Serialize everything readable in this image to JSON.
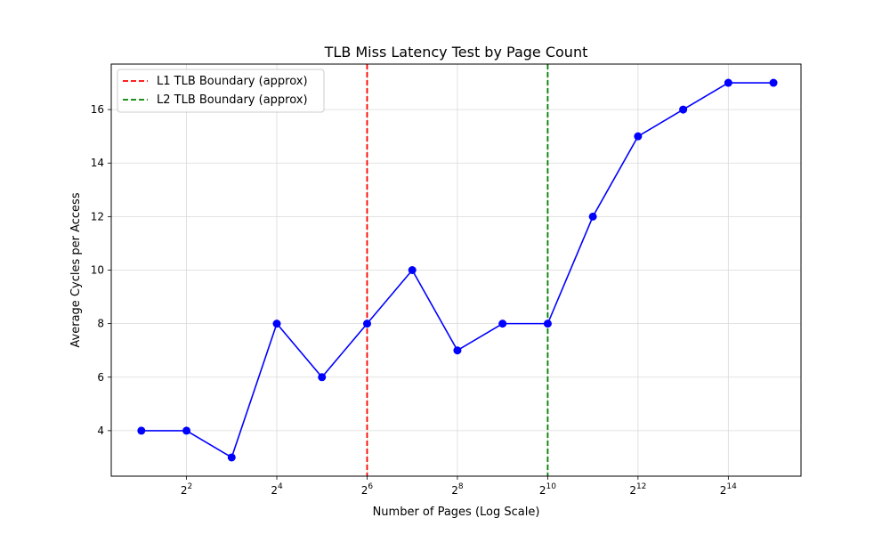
{
  "chart_data": {
    "type": "line",
    "title": "TLB Miss Latency Test by Page Count",
    "xlabel": "Number of Pages (Log Scale)",
    "ylabel": "Average Cycles per Access",
    "x_scale": "log2",
    "x": [
      2,
      4,
      8,
      16,
      32,
      64,
      128,
      256,
      512,
      1024,
      2048,
      4096,
      8192,
      16384,
      32768
    ],
    "series": [
      {
        "values": [
          4,
          4,
          3,
          8,
          6,
          8,
          10,
          7,
          8,
          8,
          12,
          15,
          16,
          17,
          17
        ],
        "color": "#0000ff"
      }
    ],
    "xlim": [
      1.26,
      50000
    ],
    "ylim": [
      2.3,
      17.7
    ],
    "x_ticks": [
      {
        "value": 4,
        "base": "2",
        "exp": "2"
      },
      {
        "value": 16,
        "base": "2",
        "exp": "4"
      },
      {
        "value": 64,
        "base": "2",
        "exp": "6"
      },
      {
        "value": 256,
        "base": "2",
        "exp": "8"
      },
      {
        "value": 1024,
        "base": "2",
        "exp": "10"
      },
      {
        "value": 4096,
        "base": "2",
        "exp": "12"
      },
      {
        "value": 16384,
        "base": "2",
        "exp": "14"
      }
    ],
    "y_ticks": [
      4,
      6,
      8,
      10,
      12,
      14,
      16
    ],
    "vlines": [
      {
        "x": 64,
        "label": "L1 TLB Boundary (approx)",
        "color": "#ff0000",
        "style": "dashed"
      },
      {
        "x": 1024,
        "label": "L2 TLB Boundary (approx)",
        "color": "#008000",
        "style": "dashed"
      }
    ],
    "grid": true,
    "legend_position": "top-left"
  }
}
